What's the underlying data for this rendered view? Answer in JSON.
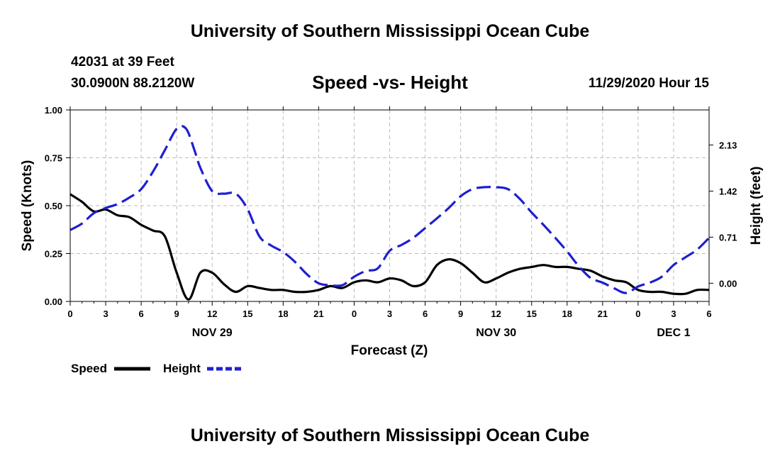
{
  "header": {
    "title": "University of Southern Mississippi Ocean Cube",
    "station_line": "42031 at 39 Feet",
    "coord_line": "30.0900N 88.2120W",
    "chart_title": "Speed -vs- Height",
    "timestamp": "11/29/2020 Hour 15"
  },
  "footer": {
    "title": "University of Southern Mississippi Ocean Cube"
  },
  "colors": {
    "speed": "#000000",
    "height": "#1f1fd0",
    "grid": "#bbbbbb",
    "axis": "#000000"
  },
  "chart_data": {
    "type": "line",
    "title": "Speed -vs- Height",
    "xlabel": "Forecast (Z)",
    "ylabel": "Speed (Knots)",
    "y2label": "Height (feet)",
    "x_unit": "forecast hours from Nov 29 00Z",
    "xlim": [
      0,
      54
    ],
    "x_ticks": [
      0,
      3,
      6,
      9,
      12,
      15,
      18,
      21,
      24,
      27,
      30,
      33,
      36,
      39,
      42,
      45,
      48,
      51,
      54
    ],
    "x_tick_labels": [
      "0",
      "3",
      "6",
      "9",
      "12",
      "15",
      "18",
      "21",
      "0",
      "3",
      "6",
      "9",
      "12",
      "15",
      "18",
      "21",
      "0",
      "3",
      "6"
    ],
    "date_labels": [
      {
        "x": 12,
        "text": "NOV 29"
      },
      {
        "x": 36,
        "text": "NOV 30"
      },
      {
        "x": 51,
        "text": "DEC 1"
      }
    ],
    "ylim": [
      0,
      1
    ],
    "y_ticks": [
      0,
      0.25,
      0.5,
      0.75,
      1
    ],
    "y_tick_labels": [
      "0.00",
      "0.25",
      "0.50",
      "0.75",
      "1.00"
    ],
    "y2lim": [
      -0.28,
      2.67
    ],
    "y2_ticks": [
      0,
      0.71,
      1.42,
      2.13
    ],
    "y2_tick_labels": [
      "0.00",
      "0.71",
      "1.42",
      "2.13"
    ],
    "grid": true,
    "legend": {
      "placement": "bottom-left",
      "speed_label": "Speed",
      "height_label": "Height"
    },
    "series": [
      {
        "name": "Speed",
        "axis": "left",
        "style": "solid",
        "x": [
          0,
          1,
          2,
          3,
          4,
          5,
          6,
          7,
          8,
          9,
          10,
          11,
          12,
          13,
          14,
          15,
          16,
          17,
          18,
          19,
          20,
          21,
          22,
          23,
          24,
          25,
          26,
          27,
          28,
          29,
          30,
          31,
          32,
          33,
          34,
          35,
          36,
          37,
          38,
          39,
          40,
          41,
          42,
          43,
          44,
          45,
          46,
          47,
          48,
          49,
          50,
          51,
          52,
          53,
          54
        ],
        "values": [
          0.56,
          0.52,
          0.47,
          0.48,
          0.45,
          0.44,
          0.4,
          0.37,
          0.34,
          0.15,
          0.01,
          0.15,
          0.15,
          0.09,
          0.05,
          0.08,
          0.07,
          0.06,
          0.06,
          0.05,
          0.05,
          0.06,
          0.08,
          0.07,
          0.1,
          0.11,
          0.1,
          0.12,
          0.11,
          0.08,
          0.1,
          0.19,
          0.22,
          0.2,
          0.15,
          0.1,
          0.12,
          0.15,
          0.17,
          0.18,
          0.19,
          0.18,
          0.18,
          0.17,
          0.16,
          0.13,
          0.11,
          0.1,
          0.06,
          0.05,
          0.05,
          0.04,
          0.04,
          0.06,
          0.06
        ]
      },
      {
        "name": "Height",
        "axis": "right",
        "style": "dashed",
        "x": [
          0,
          1,
          2,
          3,
          4,
          5,
          6,
          7,
          8,
          9,
          9.8,
          10.5,
          11,
          12,
          13,
          14,
          15,
          16,
          17,
          18,
          19,
          20,
          21,
          22,
          23,
          24,
          25,
          26,
          27,
          28,
          29,
          30,
          31,
          32,
          33,
          34,
          35,
          36,
          37,
          38,
          39,
          40,
          41,
          42,
          43,
          44,
          45,
          46,
          47,
          48,
          49,
          50,
          51,
          52,
          53,
          54
        ],
        "values": [
          0.82,
          0.92,
          1.08,
          1.16,
          1.22,
          1.32,
          1.45,
          1.72,
          2.05,
          2.38,
          2.38,
          2.05,
          1.78,
          1.42,
          1.38,
          1.38,
          1.14,
          0.72,
          0.58,
          0.48,
          0.33,
          0.14,
          0.0,
          -0.03,
          -0.03,
          0.1,
          0.19,
          0.23,
          0.5,
          0.59,
          0.7,
          0.85,
          1.0,
          1.16,
          1.34,
          1.45,
          1.48,
          1.48,
          1.45,
          1.3,
          1.09,
          0.9,
          0.7,
          0.49,
          0.26,
          0.08,
          0.01,
          -0.08,
          -0.15,
          -0.05,
          0.01,
          0.1,
          0.28,
          0.4,
          0.52,
          0.7
        ]
      }
    ]
  }
}
